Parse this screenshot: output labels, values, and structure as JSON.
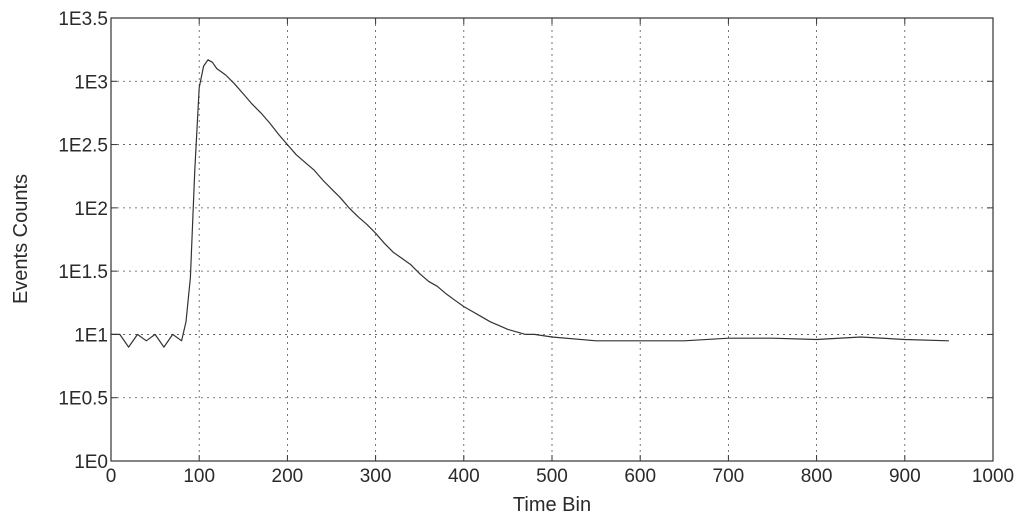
{
  "chart_data": {
    "type": "line",
    "title": "",
    "xlabel": "Time Bin",
    "ylabel": "Events Counts",
    "xlim": [
      0,
      1000
    ],
    "ylim": [
      0,
      3.5
    ],
    "y_scale": "log10",
    "grid": true,
    "x_ticks": [
      "0",
      "100",
      "200",
      "300",
      "400",
      "500",
      "600",
      "700",
      "800",
      "900",
      "1000"
    ],
    "y_ticks": [
      "1E0",
      "1E0.5",
      "1E1",
      "1E1.5",
      "1E2",
      "1E2.5",
      "1E3",
      "1E3.5"
    ],
    "series": [
      {
        "x": [
          0,
          10,
          20,
          30,
          40,
          50,
          60,
          70,
          80,
          85,
          90,
          95,
          100,
          105,
          110,
          115,
          120,
          130,
          140,
          150,
          160,
          170,
          180,
          190,
          200,
          210,
          220,
          230,
          240,
          250,
          260,
          270,
          280,
          290,
          300,
          310,
          320,
          330,
          340,
          350,
          360,
          370,
          380,
          390,
          400,
          410,
          420,
          430,
          440,
          450,
          460,
          470,
          480,
          500,
          550,
          600,
          650,
          700,
          750,
          800,
          850,
          900,
          950
        ],
        "y": [
          1.0,
          1.0,
          0.9,
          1.0,
          0.95,
          1.0,
          0.9,
          1.0,
          0.95,
          1.1,
          1.45,
          2.3,
          2.95,
          3.12,
          3.17,
          3.15,
          3.1,
          3.05,
          2.98,
          2.9,
          2.82,
          2.75,
          2.67,
          2.58,
          2.5,
          2.42,
          2.36,
          2.3,
          2.22,
          2.15,
          2.08,
          2.0,
          1.93,
          1.87,
          1.8,
          1.72,
          1.65,
          1.6,
          1.55,
          1.48,
          1.42,
          1.38,
          1.32,
          1.27,
          1.22,
          1.18,
          1.14,
          1.1,
          1.07,
          1.04,
          1.02,
          1.0,
          1.0,
          0.98,
          0.95,
          0.95,
          0.95,
          0.97,
          0.97,
          0.96,
          0.98,
          0.96,
          0.95
        ]
      }
    ]
  }
}
